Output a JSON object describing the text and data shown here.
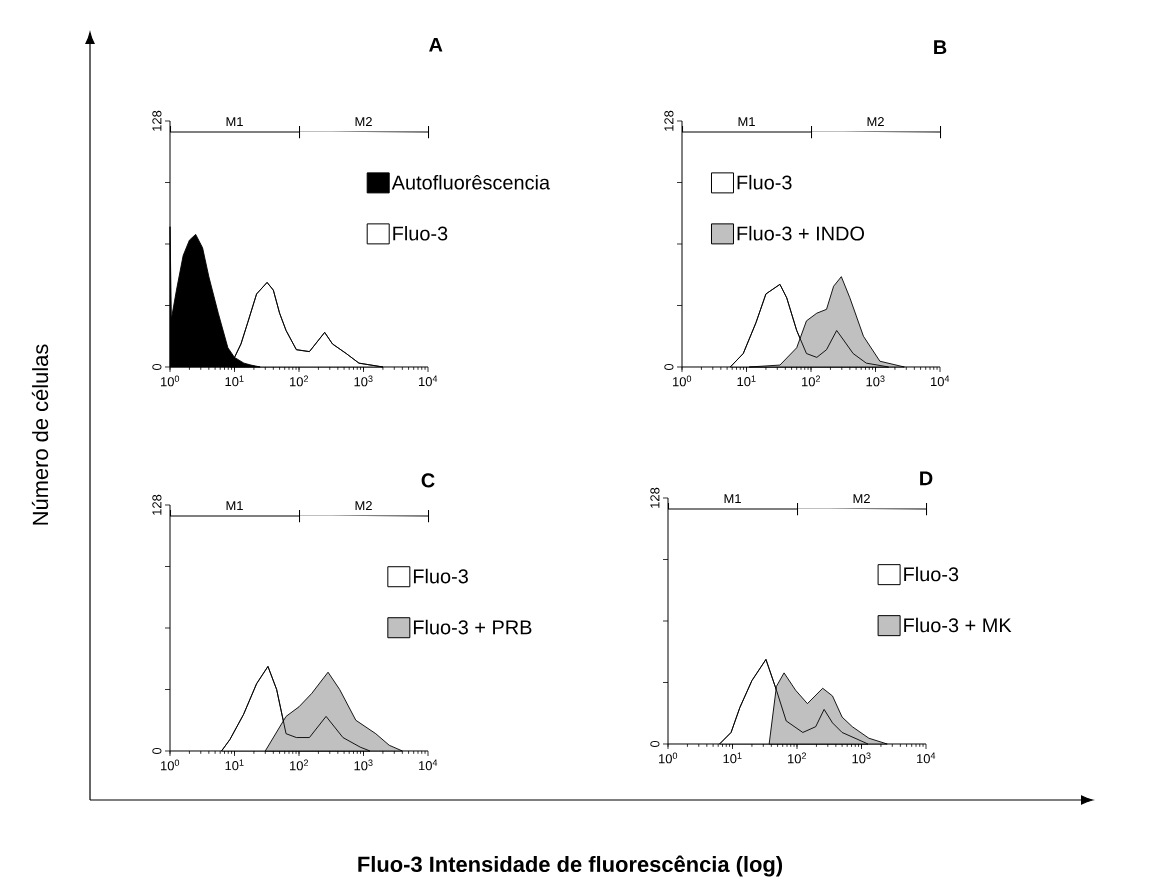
{
  "chart_data": [
    {
      "type": "area",
      "title": "A",
      "xlabel": "Fluo-3 Intensidade de fluorescência (log)",
      "ylabel": "Número de células",
      "log": "x",
      "legend": "right",
      "xlim": [
        1,
        10000
      ],
      "ylim": [
        0,
        128
      ],
      "xticks": [
        {
          "value": 1,
          "label": "10$^{0}$"
        },
        {
          "value": 10,
          "label": "10$^{1}$"
        },
        {
          "value": 100,
          "label": "10$^{2}$"
        },
        {
          "value": 1000,
          "label": "10$^{3}$"
        },
        {
          "value": 10000,
          "label": "10$^{4}$"
        }
      ],
      "yticks": [
        0,
        {
          "value": 32,
          "label": null
        },
        {
          "value": 64,
          "label": null
        },
        {
          "value": 96,
          "label": null
        },
        128
      ],
      "annotations": [
        "M1",
        "M2"
      ],
      "series": [
        {
          "name": "Autofluorêscencia",
          "color": "#000000",
          "x": [
            1,
            1.05,
            1.26,
            1.6,
            2,
            2.5,
            3.2,
            4,
            5.6,
            7.9,
            10,
            14,
            18,
            25
          ],
          "values": [
            73,
            25,
            40,
            58,
            66,
            69,
            62,
            47,
            28,
            10,
            5,
            2,
            1,
            0
          ]
        },
        {
          "name": "Fluo-3",
          "color": "#ffffff",
          "x": [
            8.5,
            12.6,
            16,
            22,
            32,
            40,
            50,
            63,
            91,
            145,
            250,
            330,
            540,
            850,
            2000
          ],
          "values": [
            0,
            12,
            23,
            38,
            44,
            40,
            28,
            19,
            9,
            8,
            18,
            12,
            7,
            2,
            0
          ]
        }
      ]
    },
    {
      "type": "area",
      "title": "B",
      "log": "x",
      "legend": "top left",
      "xlim": [
        1,
        10000
      ],
      "ylim": [
        0,
        128
      ],
      "xticks": [
        {
          "value": 1,
          "label": "10$^{0}$"
        },
        {
          "value": 10,
          "label": "10$^{1}$"
        },
        {
          "value": 100,
          "label": "10$^{2}$"
        },
        {
          "value": 1000,
          "label": "10$^{3}$"
        },
        {
          "value": 10000,
          "label": "10$^{4}$"
        }
      ],
      "yticks": [
        0,
        {
          "value": 32,
          "label": null
        },
        {
          "value": 64,
          "label": null
        },
        {
          "value": 96,
          "label": null
        },
        128
      ],
      "annotations": [
        "M1",
        "M2"
      ],
      "series": [
        {
          "name": "Fluo-3",
          "color": "#ffffff",
          "x": [
            5.6,
            8.9,
            14,
            20,
            33,
            42,
            60,
            85,
            123,
            174,
            250,
            320,
            450,
            720,
            1600
          ],
          "values": [
            0,
            7,
            23,
            38,
            43,
            36,
            19,
            7,
            5,
            9,
            19,
            14,
            7,
            2,
            0
          ]
        },
        {
          "name": "Fluo-3 + INDO",
          "color": "#c0c0c0",
          "x": [
            11,
            33,
            60,
            85,
            123,
            174,
            224,
            295,
            400,
            510,
            650,
            1170,
            2800
          ],
          "values": [
            0,
            1,
            10,
            24,
            28,
            30,
            42,
            47,
            36,
            26,
            16,
            3,
            0
          ]
        }
      ]
    },
    {
      "type": "area",
      "title": "C",
      "log": "x",
      "legend": "right",
      "xlim": [
        1,
        10000
      ],
      "ylim": [
        0,
        128
      ],
      "xticks": [
        {
          "value": 1,
          "label": "10$^{0}$"
        },
        {
          "value": 10,
          "label": "10$^{1}$"
        },
        {
          "value": 100,
          "label": "10$^{2}$"
        },
        {
          "value": 1000,
          "label": "10$^{3}$"
        },
        {
          "value": 10000,
          "label": "10$^{4}$"
        }
      ],
      "yticks": [
        0,
        {
          "value": 32,
          "label": null
        },
        {
          "value": 64,
          "label": null
        },
        {
          "value": 96,
          "label": null
        },
        128
      ],
      "annotations": [
        "M1",
        "M2"
      ],
      "series": [
        {
          "name": "Fluo-3",
          "color": "#ffffff",
          "x": [
            6.3,
            8.5,
            13.8,
            22,
            33,
            45,
            63,
            91,
            145,
            263,
            480,
            890,
            1260
          ],
          "values": [
            0,
            6,
            19,
            35,
            44,
            32,
            9,
            7,
            7,
            18,
            7,
            2,
            0
          ]
        },
        {
          "name": "Fluo-3 + PRB",
          "color": "#c0c0c0",
          "x": [
            30,
            63,
            100,
            158,
            282,
            427,
            760,
            1550,
            2500,
            4000
          ],
          "values": [
            0,
            18,
            23,
            30,
            41,
            32,
            16,
            9,
            3,
            0
          ]
        }
      ]
    },
    {
      "type": "area",
      "title": "D",
      "log": "x",
      "legend": "right",
      "xlim": [
        1,
        10000
      ],
      "ylim": [
        0,
        128
      ],
      "xticks": [
        {
          "value": 1,
          "label": "10$^{0}$"
        },
        {
          "value": 10,
          "label": "10$^{1}$"
        },
        {
          "value": 100,
          "label": "10$^{2}$"
        },
        {
          "value": 1000,
          "label": "10$^{3}$"
        },
        {
          "value": 10000,
          "label": "10$^{4}$"
        }
      ],
      "yticks": [
        0,
        {
          "value": 32,
          "label": null
        },
        {
          "value": 64,
          "label": null
        },
        {
          "value": 96,
          "label": null
        },
        128
      ],
      "annotations": [
        "M1",
        "M2"
      ],
      "series": [
        {
          "name": "Fluo-3",
          "color": "#ffffff",
          "x": [
            6.3,
            9.5,
            13,
            20,
            33,
            48,
            68,
            123,
            195,
            263,
            355,
            500,
            1260
          ],
          "values": [
            0,
            6,
            19,
            33,
            44,
            28,
            12,
            6,
            9,
            18,
            11,
            6,
            0
          ]
        },
        {
          "name": "Fluo-3 + MK",
          "color": "#c0c0c0",
          "x": [
            37,
            48,
            63,
            95,
            145,
            250,
            355,
            500,
            720,
            1300,
            2500
          ],
          "values": [
            0,
            30,
            37,
            28,
            21,
            29,
            25,
            14,
            9,
            3,
            0
          ]
        }
      ]
    }
  ]
}
